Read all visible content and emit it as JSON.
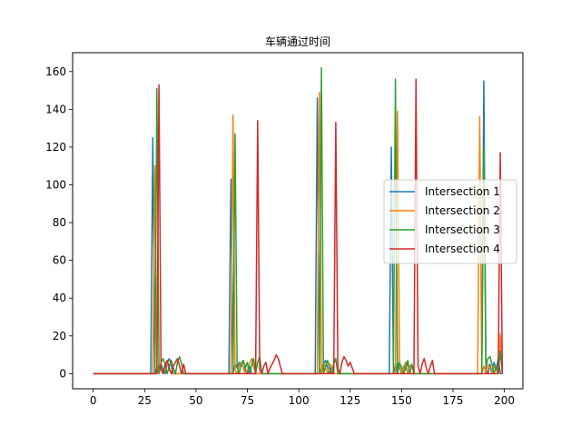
{
  "chart_data": {
    "type": "line",
    "title": "车辆通过时间",
    "xlabel": "",
    "ylabel": "",
    "xlim": [
      -10,
      209
    ],
    "ylim": [
      -8,
      170
    ],
    "x_ticks": [
      0,
      25,
      50,
      75,
      100,
      125,
      150,
      175,
      200
    ],
    "y_ticks": [
      0,
      20,
      40,
      60,
      80,
      100,
      120,
      140,
      160
    ],
    "grid": false,
    "legend_position": "center-right",
    "series": [
      {
        "name": "Intersection 1",
        "color": "#1f77b4",
        "points": [
          [
            0,
            0
          ],
          [
            28,
            0
          ],
          [
            29,
            125
          ],
          [
            30,
            0
          ],
          [
            31,
            3
          ],
          [
            32,
            0
          ],
          [
            33,
            5
          ],
          [
            34,
            2
          ],
          [
            35,
            0
          ],
          [
            36,
            6
          ],
          [
            37,
            8
          ],
          [
            38,
            4
          ],
          [
            39,
            0
          ],
          [
            40,
            0
          ],
          [
            66,
            0
          ],
          [
            67,
            103
          ],
          [
            68,
            0
          ],
          [
            69,
            5
          ],
          [
            70,
            3
          ],
          [
            71,
            6
          ],
          [
            72,
            4
          ],
          [
            73,
            7
          ],
          [
            74,
            2
          ],
          [
            75,
            0
          ],
          [
            76,
            4
          ],
          [
            77,
            0
          ],
          [
            78,
            0
          ],
          [
            108,
            0
          ],
          [
            109,
            146
          ],
          [
            110,
            3
          ],
          [
            111,
            0
          ],
          [
            112,
            5
          ],
          [
            113,
            7
          ],
          [
            114,
            3
          ],
          [
            115,
            0
          ],
          [
            116,
            4
          ],
          [
            117,
            0
          ],
          [
            118,
            0
          ],
          [
            144,
            0
          ],
          [
            145,
            120
          ],
          [
            146,
            5
          ],
          [
            147,
            0
          ],
          [
            148,
            6
          ],
          [
            149,
            3
          ],
          [
            150,
            0
          ],
          [
            151,
            4
          ],
          [
            152,
            2
          ],
          [
            153,
            6
          ],
          [
            154,
            0
          ],
          [
            155,
            0
          ],
          [
            189,
            0
          ],
          [
            190,
            155
          ],
          [
            191,
            3
          ],
          [
            192,
            0
          ],
          [
            193,
            5
          ],
          [
            194,
            0
          ],
          [
            195,
            6
          ],
          [
            196,
            2
          ],
          [
            197,
            8
          ],
          [
            198,
            0
          ],
          [
            199,
            0
          ]
        ]
      },
      {
        "name": "Intersection 2",
        "color": "#ff7f0e",
        "points": [
          [
            0,
            0
          ],
          [
            29,
            0
          ],
          [
            30,
            110
          ],
          [
            31,
            0
          ],
          [
            32,
            5
          ],
          [
            33,
            3
          ],
          [
            34,
            0
          ],
          [
            35,
            4
          ],
          [
            36,
            6
          ],
          [
            37,
            2
          ],
          [
            38,
            0
          ],
          [
            39,
            0
          ],
          [
            67,
            0
          ],
          [
            68,
            137
          ],
          [
            69,
            2
          ],
          [
            70,
            0
          ],
          [
            71,
            4
          ],
          [
            72,
            6
          ],
          [
            73,
            3
          ],
          [
            74,
            0
          ],
          [
            75,
            2
          ],
          [
            76,
            5
          ],
          [
            77,
            8
          ],
          [
            78,
            4
          ],
          [
            79,
            0
          ],
          [
            80,
            0
          ],
          [
            109,
            0
          ],
          [
            110,
            149
          ],
          [
            111,
            0
          ],
          [
            112,
            6
          ],
          [
            113,
            3
          ],
          [
            114,
            0
          ],
          [
            115,
            5
          ],
          [
            116,
            4
          ],
          [
            117,
            0
          ],
          [
            118,
            0
          ],
          [
            147,
            0
          ],
          [
            148,
            139
          ],
          [
            149,
            4
          ],
          [
            150,
            0
          ],
          [
            151,
            3
          ],
          [
            152,
            6
          ],
          [
            153,
            0
          ],
          [
            154,
            4
          ],
          [
            155,
            5
          ],
          [
            156,
            0
          ],
          [
            157,
            0
          ],
          [
            187,
            0
          ],
          [
            188,
            136
          ],
          [
            189,
            0
          ],
          [
            190,
            4
          ],
          [
            191,
            0
          ],
          [
            192,
            5
          ],
          [
            193,
            3
          ],
          [
            194,
            0
          ],
          [
            195,
            4
          ],
          [
            196,
            2
          ],
          [
            197,
            0
          ],
          [
            198,
            21
          ],
          [
            199,
            0
          ]
        ]
      },
      {
        "name": "Intersection 3",
        "color": "#2ca02c",
        "points": [
          [
            0,
            0
          ],
          [
            30,
            0
          ],
          [
            31,
            151
          ],
          [
            32,
            0
          ],
          [
            33,
            6
          ],
          [
            34,
            8
          ],
          [
            35,
            5
          ],
          [
            36,
            0
          ],
          [
            37,
            4
          ],
          [
            38,
            7
          ],
          [
            39,
            3
          ],
          [
            40,
            0
          ],
          [
            41,
            6
          ],
          [
            42,
            9
          ],
          [
            43,
            5
          ],
          [
            44,
            0
          ],
          [
            45,
            0
          ],
          [
            68,
            0
          ],
          [
            69,
            127
          ],
          [
            70,
            4
          ],
          [
            71,
            0
          ],
          [
            72,
            5
          ],
          [
            73,
            7
          ],
          [
            74,
            3
          ],
          [
            75,
            6
          ],
          [
            76,
            0
          ],
          [
            77,
            4
          ],
          [
            78,
            8
          ],
          [
            79,
            0
          ],
          [
            80,
            6
          ],
          [
            81,
            9
          ],
          [
            82,
            0
          ],
          [
            83,
            0
          ],
          [
            110,
            0
          ],
          [
            111,
            162
          ],
          [
            112,
            0
          ],
          [
            113,
            4
          ],
          [
            114,
            7
          ],
          [
            115,
            3
          ],
          [
            116,
            0
          ],
          [
            117,
            5
          ],
          [
            118,
            8
          ],
          [
            119,
            0
          ],
          [
            120,
            0
          ],
          [
            146,
            0
          ],
          [
            147,
            156
          ],
          [
            148,
            0
          ],
          [
            149,
            6
          ],
          [
            150,
            3
          ],
          [
            151,
            0
          ],
          [
            152,
            4
          ],
          [
            153,
            7
          ],
          [
            154,
            0
          ],
          [
            155,
            5
          ],
          [
            156,
            0
          ],
          [
            157,
            0
          ],
          [
            189,
            0
          ],
          [
            190,
            120
          ],
          [
            191,
            4
          ],
          [
            192,
            8
          ],
          [
            193,
            9
          ],
          [
            194,
            5
          ],
          [
            195,
            0
          ],
          [
            196,
            4
          ],
          [
            197,
            0
          ],
          [
            198,
            12
          ],
          [
            199,
            0
          ]
        ]
      },
      {
        "name": "Intersection 4",
        "color": "#d62728",
        "points": [
          [
            0,
            0
          ],
          [
            31,
            0
          ],
          [
            32,
            153
          ],
          [
            33,
            2
          ],
          [
            34,
            0
          ],
          [
            35,
            5
          ],
          [
            36,
            7
          ],
          [
            37,
            3
          ],
          [
            38,
            0
          ],
          [
            39,
            4
          ],
          [
            40,
            6
          ],
          [
            41,
            8
          ],
          [
            42,
            4
          ],
          [
            43,
            0
          ],
          [
            44,
            5
          ],
          [
            45,
            0
          ],
          [
            46,
            0
          ],
          [
            79,
            0
          ],
          [
            80,
            134
          ],
          [
            81,
            2
          ],
          [
            82,
            0
          ],
          [
            83,
            4
          ],
          [
            84,
            6
          ],
          [
            85,
            0
          ],
          [
            86,
            3
          ],
          [
            87,
            5
          ],
          [
            88,
            7
          ],
          [
            89,
            10
          ],
          [
            90,
            8
          ],
          [
            91,
            4
          ],
          [
            92,
            0
          ],
          [
            117,
            0
          ],
          [
            118,
            133
          ],
          [
            119,
            3
          ],
          [
            120,
            0
          ],
          [
            121,
            6
          ],
          [
            122,
            9
          ],
          [
            123,
            7
          ],
          [
            124,
            4
          ],
          [
            125,
            6
          ],
          [
            126,
            3
          ],
          [
            127,
            0
          ],
          [
            128,
            0
          ],
          [
            156,
            0
          ],
          [
            157,
            156
          ],
          [
            158,
            4
          ],
          [
            159,
            0
          ],
          [
            160,
            5
          ],
          [
            161,
            8
          ],
          [
            162,
            3
          ],
          [
            163,
            0
          ],
          [
            164,
            4
          ],
          [
            165,
            7
          ],
          [
            166,
            0
          ],
          [
            167,
            0
          ],
          [
            197,
            0
          ],
          [
            198,
            117
          ],
          [
            199,
            0
          ]
        ]
      }
    ]
  }
}
